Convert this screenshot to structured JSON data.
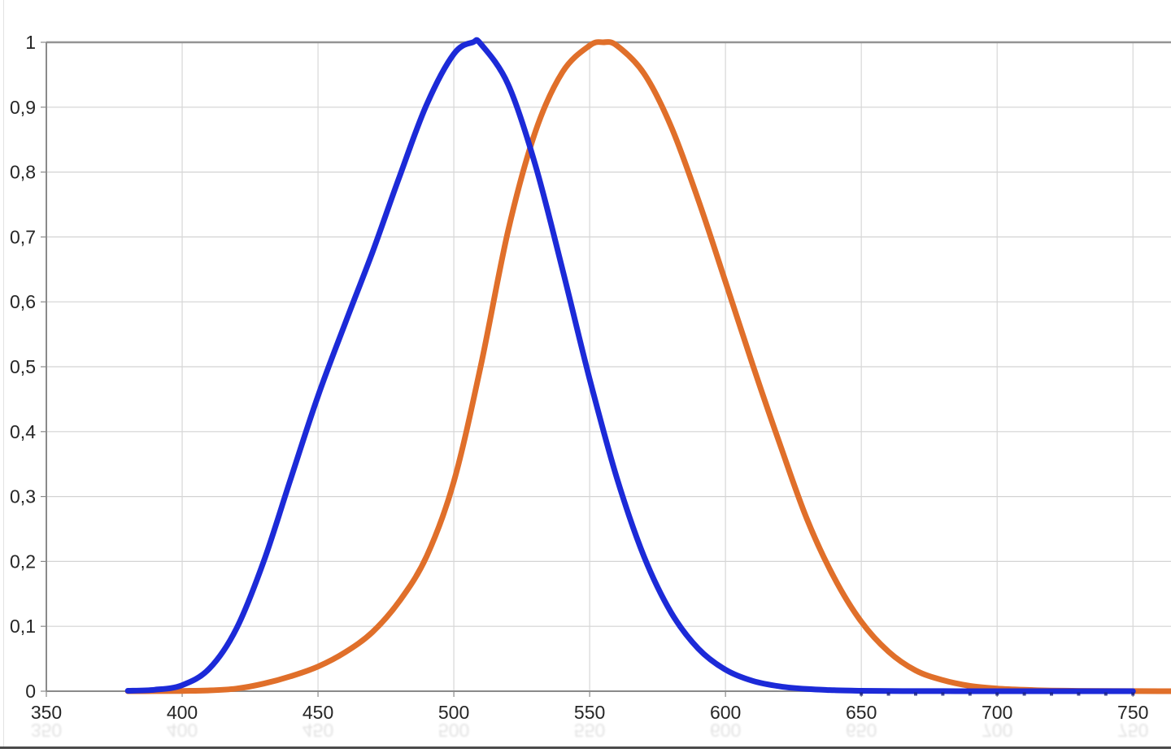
{
  "chart_data": {
    "type": "line",
    "title": "",
    "xlabel": "",
    "ylabel": "",
    "grid": true,
    "legend": "none",
    "xlim": [
      350,
      764
    ],
    "ylim": [
      0,
      1
    ],
    "x_ticks": [
      350,
      400,
      450,
      500,
      550,
      600,
      650,
      700,
      750
    ],
    "x_tick_labels": [
      "350",
      "400",
      "450",
      "500",
      "550",
      "600",
      "650",
      "700",
      "750"
    ],
    "y_ticks": [
      0,
      0.1,
      0.2,
      0.3,
      0.4,
      0.5,
      0.6,
      0.7,
      0.8,
      0.9,
      1
    ],
    "y_tick_labels": [
      "0",
      "0,1",
      "0,2",
      "0,3",
      "0,4",
      "0,5",
      "0,6",
      "0,7",
      "0,8",
      "0,9",
      "1"
    ],
    "colors": {
      "grid_h": "#d3d3d3",
      "grid_v": "#d7d7d7",
      "axis": "#8a8a8a",
      "top_border": "#949494",
      "tick_label": "#262626",
      "reflection": "#262626",
      "marker": "#141b7e"
    },
    "series": [
      {
        "name": "orange-curve",
        "color": "#e06f2a",
        "peak_x": 555,
        "points": [
          [
            380,
            3.9e-06
          ],
          [
            390,
            0.00012
          ],
          [
            400,
            0.000396
          ],
          [
            410,
            0.00121
          ],
          [
            420,
            0.004
          ],
          [
            430,
            0.0116
          ],
          [
            440,
            0.023
          ],
          [
            450,
            0.038
          ],
          [
            460,
            0.06
          ],
          [
            470,
            0.091
          ],
          [
            480,
            0.139
          ],
          [
            490,
            0.208
          ],
          [
            500,
            0.323
          ],
          [
            510,
            0.503
          ],
          [
            520,
            0.71
          ],
          [
            530,
            0.862
          ],
          [
            540,
            0.954
          ],
          [
            550,
            0.995
          ],
          [
            555,
            1.0
          ],
          [
            560,
            0.995
          ],
          [
            570,
            0.952
          ],
          [
            580,
            0.87
          ],
          [
            590,
            0.757
          ],
          [
            600,
            0.631
          ],
          [
            610,
            0.503
          ],
          [
            620,
            0.381
          ],
          [
            630,
            0.265
          ],
          [
            640,
            0.175
          ],
          [
            650,
            0.107
          ],
          [
            660,
            0.061
          ],
          [
            670,
            0.032
          ],
          [
            680,
            0.017
          ],
          [
            690,
            0.0082
          ],
          [
            700,
            0.0041
          ],
          [
            710,
            0.0021
          ],
          [
            720,
            0.00105
          ],
          [
            730,
            0.00052
          ],
          [
            740,
            0.00025
          ],
          [
            750,
            0.00012
          ],
          [
            760,
            6e-05
          ],
          [
            770,
            3e-05
          ]
        ],
        "tail_markers": false
      },
      {
        "name": "blue-curve",
        "color": "#1c2ad8",
        "peak_x": 507,
        "points": [
          [
            380,
            0.000589
          ],
          [
            390,
            0.002209
          ],
          [
            400,
            0.00929
          ],
          [
            410,
            0.03484
          ],
          [
            420,
            0.0966
          ],
          [
            430,
            0.1998
          ],
          [
            440,
            0.3281
          ],
          [
            450,
            0.455
          ],
          [
            460,
            0.567
          ],
          [
            470,
            0.676
          ],
          [
            480,
            0.793
          ],
          [
            490,
            0.904
          ],
          [
            500,
            0.982
          ],
          [
            507,
            1.0
          ],
          [
            510,
            0.997
          ],
          [
            520,
            0.935
          ],
          [
            530,
            0.811
          ],
          [
            540,
            0.65
          ],
          [
            550,
            0.481
          ],
          [
            560,
            0.3288
          ],
          [
            570,
            0.2076
          ],
          [
            580,
            0.1212
          ],
          [
            590,
            0.0655
          ],
          [
            600,
            0.03315
          ],
          [
            610,
            0.01593
          ],
          [
            620,
            0.00737
          ],
          [
            630,
            0.00334
          ],
          [
            640,
            0.0015
          ],
          [
            650,
            0.000677
          ],
          [
            660,
            0.000313
          ],
          [
            670,
            0.000148
          ],
          [
            680,
            7.15e-05
          ],
          [
            690,
            3.53e-05
          ],
          [
            700,
            1.78e-05
          ],
          [
            710,
            9.1e-06
          ],
          [
            720,
            4.8e-06
          ],
          [
            730,
            2.5e-06
          ],
          [
            740,
            1.4e-06
          ],
          [
            750,
            8e-07
          ]
        ],
        "tail_markers": true,
        "tail_marker_range": [
          650,
          750
        ]
      }
    ]
  }
}
